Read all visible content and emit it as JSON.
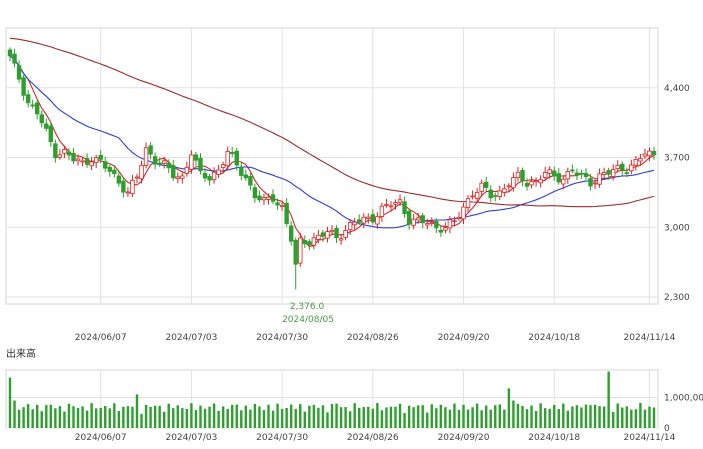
{
  "chart_data": [
    {
      "type": "candlestick",
      "title": "",
      "yticks": [
        "4,400",
        "3,700",
        "3,000",
        "2,300"
      ],
      "ytick_values": [
        4400,
        3700,
        3000,
        2300
      ],
      "ylim": [
        2230,
        5000
      ],
      "xticks": [
        "2024/06/07",
        "2024/07/03",
        "2024/07/30",
        "2024/08/26",
        "2024/09/20",
        "2024/10/18",
        "2024/11/14"
      ],
      "annotation": {
        "value_label": "2,376.0",
        "date_label": "2024/08/05",
        "low": 2376
      },
      "colors": {
        "up": "#dd2222",
        "down": "#2e9e2e",
        "ma_short": "#cc2b2b",
        "ma_mid": "#2b3fd6",
        "ma_long": "#9b2d2d"
      },
      "series": [
        {
          "name": "price",
          "anchors": [
            [
              0,
              4700
            ],
            [
              2,
              4500
            ],
            [
              4,
              4250
            ],
            [
              6,
              4150
            ],
            [
              8,
              3950
            ],
            [
              10,
              3750
            ],
            [
              12,
              3750
            ],
            [
              14,
              3680
            ],
            [
              16,
              3640
            ],
            [
              18,
              3700
            ],
            [
              20,
              3650
            ],
            [
              22,
              3560
            ],
            [
              24,
              3460
            ],
            [
              26,
              3350
            ],
            [
              28,
              3500
            ],
            [
              30,
              3780
            ],
            [
              32,
              3680
            ],
            [
              34,
              3620
            ],
            [
              36,
              3520
            ],
            [
              38,
              3500
            ],
            [
              40,
              3760
            ],
            [
              42,
              3520
            ],
            [
              44,
              3500
            ],
            [
              46,
              3580
            ],
            [
              48,
              3750
            ],
            [
              50,
              3620
            ],
            [
              52,
              3500
            ],
            [
              54,
              3320
            ],
            [
              56,
              3250
            ],
            [
              58,
              3300
            ],
            [
              60,
              3200
            ],
            [
              62,
              2880
            ],
            [
              63,
              2600
            ],
            [
              64,
              2850
            ],
            [
              66,
              2870
            ],
            [
              68,
              2900
            ],
            [
              70,
              2950
            ],
            [
              72,
              2900
            ],
            [
              74,
              2980
            ],
            [
              76,
              3050
            ],
            [
              78,
              3070
            ],
            [
              80,
              3100
            ],
            [
              82,
              3180
            ],
            [
              84,
              3230
            ],
            [
              86,
              3250
            ],
            [
              88,
              3080
            ],
            [
              90,
              3050
            ],
            [
              92,
              3050
            ],
            [
              94,
              3000
            ],
            [
              96,
              3000
            ],
            [
              98,
              3050
            ],
            [
              100,
              3200
            ],
            [
              102,
              3350
            ],
            [
              104,
              3400
            ],
            [
              106,
              3320
            ],
            [
              108,
              3350
            ],
            [
              110,
              3450
            ],
            [
              112,
              3500
            ],
            [
              114,
              3450
            ],
            [
              116,
              3460
            ],
            [
              118,
              3550
            ],
            [
              120,
              3500
            ],
            [
              122,
              3500
            ],
            [
              124,
              3580
            ],
            [
              126,
              3500
            ],
            [
              128,
              3450
            ],
            [
              130,
              3520
            ],
            [
              132,
              3550
            ],
            [
              134,
              3580
            ],
            [
              136,
              3600
            ],
            [
              138,
              3650
            ],
            [
              140,
              3740
            ],
            [
              142,
              3720
            ]
          ]
        }
      ]
    },
    {
      "type": "bar",
      "title": "出来高",
      "yticks": [
        "1,000,00",
        "0"
      ],
      "ytick_values": [
        1000,
        0
      ],
      "ylim": [
        0,
        1900
      ],
      "xticks": [
        "2024/06/07",
        "2024/07/03",
        "2024/07/30",
        "2024/08/26",
        "2024/09/20",
        "2024/10/18",
        "2024/11/14"
      ],
      "spikes": [
        [
          0,
          1650
        ],
        [
          1,
          900
        ],
        [
          28,
          1100
        ],
        [
          72,
          800
        ],
        [
          110,
          1300
        ],
        [
          111,
          900
        ],
        [
          128,
          750
        ],
        [
          132,
          1850
        ],
        [
          137,
          600
        ]
      ],
      "baseline": 450
    }
  ]
}
